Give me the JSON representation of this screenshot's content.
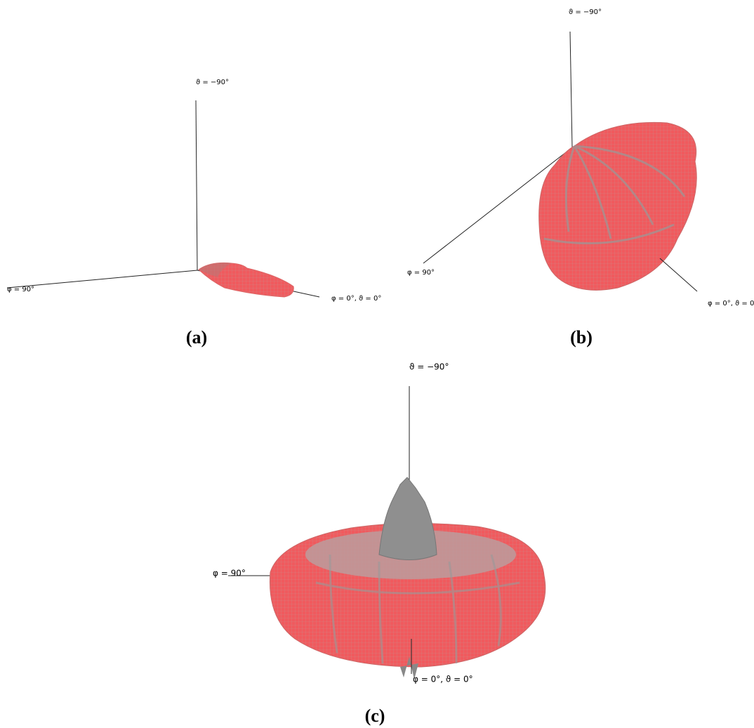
{
  "panels": [
    {
      "caption": "(a)",
      "axis_labels": {
        "z": "ϑ = −90°",
        "y": "φ = 90°",
        "x": "φ = 0°, ϑ = 0°"
      }
    },
    {
      "caption": "(b)",
      "axis_labels": {
        "z": "ϑ = −90°",
        "y": "φ = 90°",
        "x": "φ = 0°, ϑ = 0°"
      }
    },
    {
      "caption": "(c)",
      "axis_labels": {
        "z": "ϑ = −90°",
        "y": "φ = 90°",
        "x": "φ = 0°, ϑ = 0°"
      }
    }
  ]
}
